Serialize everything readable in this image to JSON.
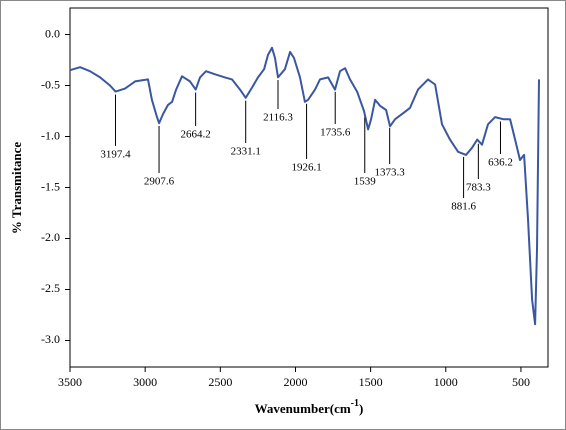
{
  "chart_data": {
    "type": "line",
    "xlabel": "Wavenumber(cm",
    "xlabel_sup": "-1",
    "xlabel_end": ")",
    "ylabel": "% Transmitance",
    "xlim": [
      3500,
      320
    ],
    "ylim": [
      -3.26,
      0.26
    ],
    "xticks": [
      3500,
      3000,
      2500,
      2000,
      1500,
      1000,
      500
    ],
    "yticks": [
      {
        "value": 0,
        "label": "0.0"
      },
      -0.5,
      {
        "value": -1,
        "label": "-1.0"
      },
      -1.5,
      {
        "value": -2,
        "label": "-2.0"
      },
      -2.5,
      {
        "value": -3,
        "label": "-3.0"
      }
    ],
    "series": [
      {
        "color": "#3a57a0",
        "x": [
          3500,
          3433,
          3367,
          3300,
          3234,
          3197,
          3134,
          3067,
          2981,
          2955,
          2921,
          2907,
          2881,
          2848,
          2821,
          2794,
          2755,
          2702,
          2664,
          2635,
          2595,
          2535,
          2469,
          2422,
          2369,
          2331,
          2289,
          2249,
          2209,
          2183,
          2156,
          2136,
          2116,
          2070,
          2036,
          2010,
          1970,
          1937,
          1916,
          1870,
          1837,
          1783,
          1737,
          1704,
          1670,
          1637,
          1590,
          1544,
          1517,
          1497,
          1470,
          1437,
          1397,
          1371,
          1337,
          1291,
          1238,
          1185,
          1118,
          1071,
          1025,
          972,
          918,
          865,
          825,
          791,
          759,
          719,
          672,
          618,
          572,
          539,
          506,
          479,
          453,
          426,
          406,
          393,
          380
        ],
        "values": [
          -0.35,
          -0.32,
          -0.36,
          -0.42,
          -0.5,
          -0.56,
          -0.53,
          -0.46,
          -0.44,
          -0.64,
          -0.81,
          -0.87,
          -0.78,
          -0.69,
          -0.66,
          -0.54,
          -0.41,
          -0.46,
          -0.54,
          -0.42,
          -0.36,
          -0.39,
          -0.42,
          -0.44,
          -0.54,
          -0.62,
          -0.52,
          -0.42,
          -0.34,
          -0.2,
          -0.13,
          -0.23,
          -0.42,
          -0.34,
          -0.17,
          -0.23,
          -0.42,
          -0.66,
          -0.64,
          -0.54,
          -0.44,
          -0.42,
          -0.54,
          -0.36,
          -0.33,
          -0.44,
          -0.56,
          -0.75,
          -0.93,
          -0.83,
          -0.64,
          -0.7,
          -0.74,
          -0.9,
          -0.83,
          -0.78,
          -0.72,
          -0.54,
          -0.44,
          -0.49,
          -0.88,
          -1.03,
          -1.15,
          -1.18,
          -1.11,
          -1.03,
          -1.08,
          -0.88,
          -0.81,
          -0.83,
          -0.83,
          -1.03,
          -1.23,
          -1.18,
          -1.81,
          -2.6,
          -2.84,
          -2.11,
          -0.44
        ]
      }
    ],
    "peaks": [
      3197.4,
      2907.6,
      2664.2,
      2331.1,
      2116.3,
      1926.1,
      1735.6,
      1539,
      1373.3,
      881.6,
      783.3,
      636.2
    ]
  }
}
